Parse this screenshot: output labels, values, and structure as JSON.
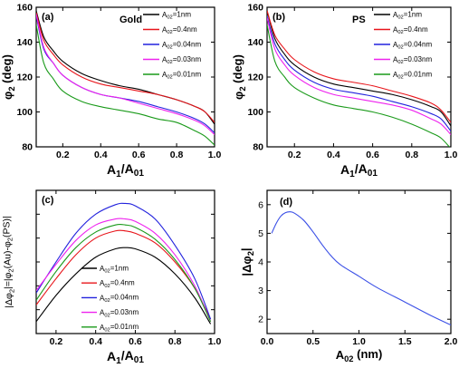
{
  "colors": {
    "black": "#000000",
    "red": "#e8141a",
    "blue": "#2222dd",
    "magenta": "#ee22ee",
    "green": "#1a9a1a",
    "curve_d": "#3a4fe6"
  },
  "chart_data": [
    {
      "panel": "(a)",
      "type": "line",
      "title": "Gold",
      "xlabel": "A1/A01",
      "ylabel": "φ2 (deg)",
      "xlim": [
        0.06,
        1.0
      ],
      "ylim": [
        80,
        160
      ],
      "xticks": [
        "0.2",
        "0.4",
        "0.6",
        "0.8",
        "1.0"
      ],
      "xtick_values": [
        0.2,
        0.4,
        0.6,
        0.8,
        1.0
      ],
      "yticks": [
        "80",
        "100",
        "120",
        "140",
        "160"
      ],
      "ytick_values": [
        80,
        100,
        120,
        140,
        160
      ],
      "legend_position": "top-right",
      "series": [
        {
          "name": "A02=1nm",
          "color": "black",
          "x": [
            0.06,
            0.1,
            0.15,
            0.2,
            0.3,
            0.4,
            0.5,
            0.6,
            0.7,
            0.8,
            0.9,
            0.95,
            1.0
          ],
          "y": [
            158,
            143,
            135,
            129,
            122,
            118,
            115,
            113,
            110,
            107,
            103,
            100,
            93
          ]
        },
        {
          "name": "A02=0.4nm",
          "color": "red",
          "x": [
            0.06,
            0.1,
            0.15,
            0.2,
            0.3,
            0.4,
            0.5,
            0.6,
            0.7,
            0.8,
            0.9,
            0.95,
            1.0
          ],
          "y": [
            157,
            141,
            133,
            127,
            120,
            116,
            114,
            112,
            110,
            107,
            103,
            100,
            94
          ]
        },
        {
          "name": "A02=0.04nm",
          "color": "blue",
          "x": [
            0.06,
            0.1,
            0.15,
            0.2,
            0.3,
            0.4,
            0.5,
            0.6,
            0.7,
            0.8,
            0.9,
            0.95,
            1.0
          ],
          "y": [
            155,
            136,
            128,
            121,
            114,
            110,
            108,
            106,
            103,
            100,
            96,
            93,
            88
          ]
        },
        {
          "name": "A02=0.03nm",
          "color": "magenta",
          "x": [
            0.06,
            0.1,
            0.15,
            0.2,
            0.3,
            0.4,
            0.5,
            0.6,
            0.7,
            0.8,
            0.9,
            0.95,
            1.0
          ],
          "y": [
            156,
            137,
            128,
            121,
            114,
            110,
            108,
            105,
            102,
            99,
            95,
            92,
            87
          ]
        },
        {
          "name": "A02=0.01nm",
          "color": "green",
          "x": [
            0.06,
            0.1,
            0.15,
            0.2,
            0.3,
            0.4,
            0.5,
            0.6,
            0.7,
            0.8,
            0.9,
            0.95,
            1.0
          ],
          "y": [
            150,
            128,
            119,
            112,
            106,
            103,
            101,
            99,
            96,
            94,
            89,
            86,
            81
          ]
        }
      ]
    },
    {
      "panel": "(b)",
      "type": "line",
      "title": "PS",
      "xlabel": "A1/A01",
      "ylabel": "φ2 (deg)",
      "xlim": [
        0.06,
        1.0
      ],
      "ylim": [
        80,
        160
      ],
      "xticks": [
        "0.2",
        "0.4",
        "0.6",
        "0.8",
        "1.0"
      ],
      "xtick_values": [
        0.2,
        0.4,
        0.6,
        0.8,
        1.0
      ],
      "yticks": [
        "80",
        "100",
        "120",
        "140",
        "160"
      ],
      "ytick_values": [
        80,
        100,
        120,
        140,
        160
      ],
      "legend_position": "top-right",
      "series": [
        {
          "name": "A02=1nm",
          "color": "black",
          "x": [
            0.06,
            0.1,
            0.15,
            0.2,
            0.3,
            0.4,
            0.5,
            0.6,
            0.7,
            0.8,
            0.9,
            0.95,
            1.0
          ],
          "y": [
            158,
            142,
            133,
            127,
            120,
            116,
            114,
            112,
            110,
            107,
            103,
            100,
            92
          ]
        },
        {
          "name": "A02=0.4nm",
          "color": "red",
          "x": [
            0.06,
            0.1,
            0.15,
            0.2,
            0.3,
            0.4,
            0.5,
            0.6,
            0.7,
            0.8,
            0.9,
            0.95,
            1.0
          ],
          "y": [
            158,
            144,
            136,
            130,
            123,
            119,
            117,
            115,
            112,
            109,
            105,
            101,
            94
          ]
        },
        {
          "name": "A02=0.04nm",
          "color": "blue",
          "x": [
            0.06,
            0.1,
            0.15,
            0.2,
            0.3,
            0.4,
            0.5,
            0.6,
            0.7,
            0.8,
            0.9,
            0.95,
            1.0
          ],
          "y": [
            155,
            139,
            130,
            124,
            117,
            113,
            111,
            109,
            106,
            103,
            99,
            96,
            89
          ]
        },
        {
          "name": "A02=0.03nm",
          "color": "magenta",
          "x": [
            0.06,
            0.1,
            0.15,
            0.2,
            0.3,
            0.4,
            0.5,
            0.6,
            0.7,
            0.8,
            0.9,
            0.95,
            1.0
          ],
          "y": [
            154,
            136,
            127,
            121,
            114,
            110,
            108,
            106,
            104,
            101,
            96,
            93,
            87
          ]
        },
        {
          "name": "A02=0.01nm",
          "color": "green",
          "x": [
            0.06,
            0.1,
            0.15,
            0.2,
            0.3,
            0.4,
            0.5,
            0.6,
            0.7,
            0.8,
            0.9,
            0.95,
            1.0
          ],
          "y": [
            150,
            129,
            120,
            114,
            108,
            104,
            102,
            100,
            97,
            93,
            88,
            85,
            79
          ]
        }
      ]
    },
    {
      "panel": "(c)",
      "type": "line",
      "title": "",
      "xlabel": "A1/A01",
      "ylabel": "|Δφ2|=|φ2(Au)-φ2(PS)|",
      "xlim": [
        0.1,
        1.0
      ],
      "ylim": [
        0,
        6
      ],
      "xticks": [
        "0.2",
        "0.4",
        "0.6",
        "0.8",
        "1.0"
      ],
      "xtick_values": [
        0.2,
        0.4,
        0.6,
        0.8,
        1.0
      ],
      "yticks": [],
      "ytick_values": [
        0,
        1,
        2,
        3,
        4,
        5,
        6
      ],
      "legend_position": "bottom-center",
      "series": [
        {
          "name": "A02=1nm",
          "color": "black",
          "x": [
            0.1,
            0.2,
            0.3,
            0.4,
            0.5,
            0.55,
            0.6,
            0.7,
            0.8,
            0.9,
            0.98
          ],
          "y": [
            0.5,
            1.6,
            2.5,
            3.2,
            3.55,
            3.6,
            3.55,
            3.2,
            2.5,
            1.5,
            0.4
          ]
        },
        {
          "name": "A02=0.4nm",
          "color": "red",
          "x": [
            0.1,
            0.2,
            0.3,
            0.4,
            0.5,
            0.55,
            0.6,
            0.7,
            0.8,
            0.9,
            0.98
          ],
          "y": [
            1.2,
            2.3,
            3.3,
            4.0,
            4.3,
            4.3,
            4.2,
            3.8,
            3.0,
            1.9,
            0.6
          ]
        },
        {
          "name": "A02=0.04nm",
          "color": "blue",
          "x": [
            0.1,
            0.2,
            0.3,
            0.4,
            0.5,
            0.55,
            0.6,
            0.7,
            0.8,
            0.9,
            0.98
          ],
          "y": [
            1.7,
            3.0,
            4.2,
            5.0,
            5.4,
            5.45,
            5.35,
            4.8,
            3.7,
            2.3,
            0.6
          ]
        },
        {
          "name": "A02=0.03nm",
          "color": "magenta",
          "x": [
            0.1,
            0.2,
            0.3,
            0.4,
            0.5,
            0.55,
            0.6,
            0.7,
            0.8,
            0.9,
            0.98
          ],
          "y": [
            1.8,
            2.9,
            3.9,
            4.55,
            4.8,
            4.8,
            4.7,
            4.2,
            3.3,
            2.0,
            0.5
          ]
        },
        {
          "name": "A02=0.01nm",
          "color": "green",
          "x": [
            0.1,
            0.2,
            0.3,
            0.4,
            0.5,
            0.55,
            0.6,
            0.7,
            0.8,
            0.9,
            0.98
          ],
          "y": [
            1.4,
            2.6,
            3.6,
            4.25,
            4.55,
            4.55,
            4.45,
            3.95,
            3.1,
            1.9,
            0.5
          ]
        }
      ]
    },
    {
      "panel": "(d)",
      "type": "line",
      "title": "",
      "xlabel": "A02 (nm)",
      "ylabel": "|Δφ2|",
      "xlim": [
        0.0,
        2.0
      ],
      "ylim": [
        1.5,
        6.5
      ],
      "xticks": [
        "0.0",
        "0.5",
        "1.0",
        "1.5",
        "2.0"
      ],
      "xtick_values": [
        0.0,
        0.5,
        1.0,
        1.5,
        2.0
      ],
      "yticks": [
        "2",
        "3",
        "4",
        "5",
        "6"
      ],
      "ytick_values": [
        2,
        3,
        4,
        5,
        6
      ],
      "legend_position": "none",
      "series": [
        {
          "name": "",
          "color": "curve_d",
          "x": [
            0.05,
            0.1,
            0.15,
            0.2,
            0.25,
            0.3,
            0.4,
            0.5,
            0.6,
            0.7,
            0.8,
            1.0,
            1.2,
            1.5,
            1.8,
            2.0
          ],
          "y": [
            5.0,
            5.35,
            5.6,
            5.72,
            5.75,
            5.7,
            5.45,
            5.05,
            4.6,
            4.2,
            3.9,
            3.5,
            3.1,
            2.6,
            2.1,
            1.8
          ]
        }
      ]
    }
  ]
}
